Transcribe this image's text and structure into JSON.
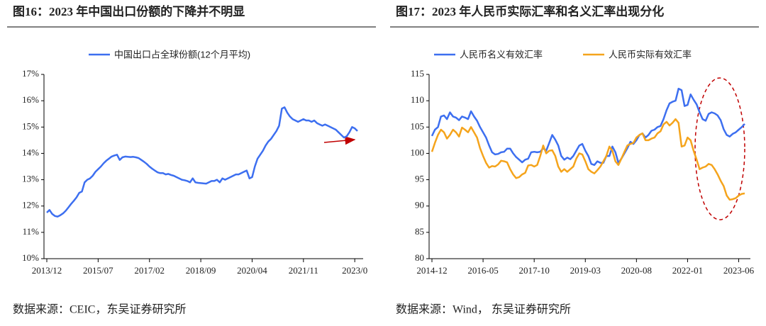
{
  "chart_data": [
    {
      "type": "line",
      "title": "图16：2023 年中国出口份额的下降并不明显",
      "source": "数据来源：CEIC，东吴证券研究所",
      "categories": [
        "2013/12",
        null,
        null,
        null,
        null,
        null,
        null,
        null,
        null,
        null,
        null,
        null,
        null,
        null,
        null,
        null,
        null,
        null,
        null,
        "2015/07",
        null,
        null,
        null,
        null,
        null,
        null,
        null,
        null,
        null,
        null,
        null,
        null,
        null,
        null,
        null,
        null,
        null,
        null,
        "2017/02",
        null,
        null,
        null,
        null,
        null,
        null,
        null,
        null,
        null,
        null,
        null,
        null,
        null,
        null,
        null,
        null,
        null,
        null,
        "2018/09",
        null,
        null,
        null,
        null,
        null,
        null,
        null,
        null,
        null,
        null,
        null,
        null,
        null,
        null,
        null,
        null,
        null,
        null,
        "2020/04",
        null,
        null,
        null,
        null,
        null,
        null,
        null,
        null,
        null,
        null,
        null,
        null,
        null,
        null,
        null,
        null,
        null,
        null,
        "2021/11",
        null,
        null,
        null,
        null,
        null,
        null,
        null,
        null,
        null,
        null,
        null,
        null,
        null,
        null,
        null,
        null,
        null,
        null,
        "2023/0",
        null
      ],
      "series": [
        {
          "name": "中国出口占全球份额(12个月平均)",
          "color": "#3d6ff0",
          "values": [
            11.75,
            11.85,
            11.7,
            11.62,
            11.6,
            11.65,
            11.72,
            11.82,
            11.95,
            12.08,
            12.2,
            12.33,
            12.5,
            12.55,
            12.9,
            13,
            13.05,
            13.15,
            13.3,
            13.4,
            13.5,
            13.62,
            13.72,
            13.8,
            13.88,
            13.92,
            13.95,
            13.75,
            13.85,
            13.88,
            13.87,
            13.86,
            13.87,
            13.85,
            13.82,
            13.75,
            13.68,
            13.6,
            13.5,
            13.42,
            13.35,
            13.28,
            13.25,
            13.25,
            13.2,
            13.22,
            13.18,
            13.15,
            13.1,
            13.05,
            13,
            12.98,
            12.95,
            12.9,
            13.05,
            12.9,
            12.88,
            12.87,
            12.86,
            12.85,
            12.9,
            12.95,
            12.95,
            13,
            12.9,
            13.05,
            13,
            13.05,
            13.1,
            13.15,
            13.2,
            13.2,
            13.25,
            13.3,
            13.35,
            13.05,
            13.1,
            13.5,
            13.8,
            13.95,
            14.1,
            14.3,
            14.45,
            14.55,
            14.7,
            14.85,
            15.05,
            15.7,
            15.75,
            15.55,
            15.4,
            15.3,
            15.25,
            15.2,
            15.25,
            15.3,
            15.25,
            15.25,
            15.2,
            15.25,
            15.15,
            15.1,
            15.05,
            15.1,
            15.05,
            15,
            14.95,
            14.9,
            14.8,
            14.7,
            14.6,
            14.65,
            14.8,
            15,
            14.95,
            14.85
          ]
        }
      ],
      "ylim": [
        10,
        17
      ],
      "yticks": [
        {
          "value": 10,
          "label": "10%"
        },
        {
          "value": 11,
          "label": "11%"
        },
        {
          "value": 12,
          "label": "12%"
        },
        {
          "value": 13,
          "label": "13%"
        },
        {
          "value": 14,
          "label": "14%"
        },
        {
          "value": 15,
          "label": "15%"
        },
        {
          "value": 16,
          "label": "16%"
        },
        {
          "value": 17,
          "label": "17%"
        }
      ]
    },
    {
      "type": "line",
      "title": "图17：2023 年人民币实际汇率和名义汇率出现分化",
      "source": "数据来源：Wind， 东吴证券研究所",
      "categories": [
        "2014-12",
        null,
        null,
        null,
        null,
        null,
        null,
        null,
        null,
        null,
        null,
        null,
        null,
        null,
        null,
        null,
        null,
        "2016-05",
        null,
        null,
        null,
        null,
        null,
        null,
        null,
        null,
        null,
        null,
        null,
        null,
        null,
        null,
        null,
        null,
        "2017-10",
        null,
        null,
        null,
        null,
        null,
        null,
        null,
        null,
        null,
        null,
        null,
        null,
        null,
        null,
        null,
        null,
        "2019-03",
        null,
        null,
        null,
        null,
        null,
        null,
        null,
        null,
        null,
        null,
        null,
        null,
        null,
        null,
        null,
        null,
        "2020-08",
        null,
        null,
        null,
        null,
        null,
        null,
        null,
        null,
        null,
        null,
        null,
        null,
        null,
        null,
        null,
        null,
        "2022-01",
        null,
        null,
        null,
        null,
        null,
        null,
        null,
        null,
        null,
        null,
        null,
        null,
        null,
        null,
        null,
        null,
        "2023-06",
        null,
        null
      ],
      "series": [
        {
          "name": "人民币名义有效汇率",
          "color": "#3d6ff0",
          "values": [
            103.3,
            104.5,
            105,
            107,
            107.2,
            106.5,
            107.8,
            107,
            106.8,
            106.3,
            107,
            106.8,
            106.5,
            108,
            107,
            106.2,
            105,
            104,
            103,
            101.5,
            100.2,
            99.8,
            99.9,
            100.2,
            100.3,
            100.9,
            100.9,
            100,
            99.3,
            98.8,
            98.3,
            98.8,
            99,
            100.2,
            100.3,
            100.2,
            100.3,
            101,
            100.5,
            102,
            103.5,
            102.6,
            101.5,
            99.5,
            98.8,
            99.2,
            98.9,
            99.5,
            100.5,
            101.5,
            101.8,
            100.5,
            99.5,
            98,
            97.8,
            98.5,
            98.2,
            98.2,
            99.5,
            99.5,
            101.3,
            100.2,
            98.2,
            99,
            100,
            101,
            102.2,
            101.8,
            102.5,
            103.5,
            103.8,
            103,
            103.5,
            104.3,
            104.5,
            105,
            105.2,
            106.5,
            108.2,
            109.5,
            109.8,
            110,
            112.3,
            112,
            109,
            109.2,
            111.2,
            110.2,
            109.3,
            107.8,
            106.5,
            106.2,
            107.5,
            107.8,
            107.6,
            107.2,
            106.3,
            104.6,
            103.5,
            103.2,
            103.7,
            104,
            104.5,
            105,
            105.6
          ]
        },
        {
          "name": "人民币实际有效汇率",
          "color": "#f5a41c",
          "values": [
            100.3,
            102,
            103.5,
            104.5,
            104,
            102.8,
            103.5,
            104.5,
            104,
            103.2,
            104.9,
            104.5,
            104,
            105,
            104,
            103,
            101,
            99.5,
            98.2,
            97.3,
            97.6,
            97.5,
            97.9,
            98.6,
            98.5,
            98.3,
            97,
            96,
            95.3,
            95.5,
            96,
            96.3,
            97.7,
            97.8,
            97.5,
            97.8,
            99.5,
            101.5,
            100,
            100.5,
            100.6,
            99.5,
            97.5,
            96.5,
            97,
            96.5,
            97,
            97.5,
            99,
            100,
            99.8,
            98.5,
            97,
            96.5,
            96.2,
            96.8,
            97.5,
            98.5,
            99.5,
            101.3,
            100.5,
            98.5,
            97.8,
            99,
            100.3,
            101.5,
            101.8,
            102,
            103,
            103.5,
            103.8,
            102.5,
            102.5,
            102.8,
            103,
            103.8,
            104.2,
            105.5,
            106,
            105.3,
            105.8,
            106.5,
            105.8,
            101.3,
            101.5,
            103,
            102.5,
            100.5,
            98.8,
            97,
            97.3,
            97.5,
            98,
            97.8,
            97,
            96,
            94.8,
            93.8,
            92,
            91.2,
            91.3,
            91.5,
            92,
            92.3,
            92.4
          ]
        }
      ],
      "ylim": [
        80,
        115
      ],
      "yticks": [
        80,
        85,
        90,
        95,
        100,
        105,
        110,
        115
      ]
    }
  ]
}
